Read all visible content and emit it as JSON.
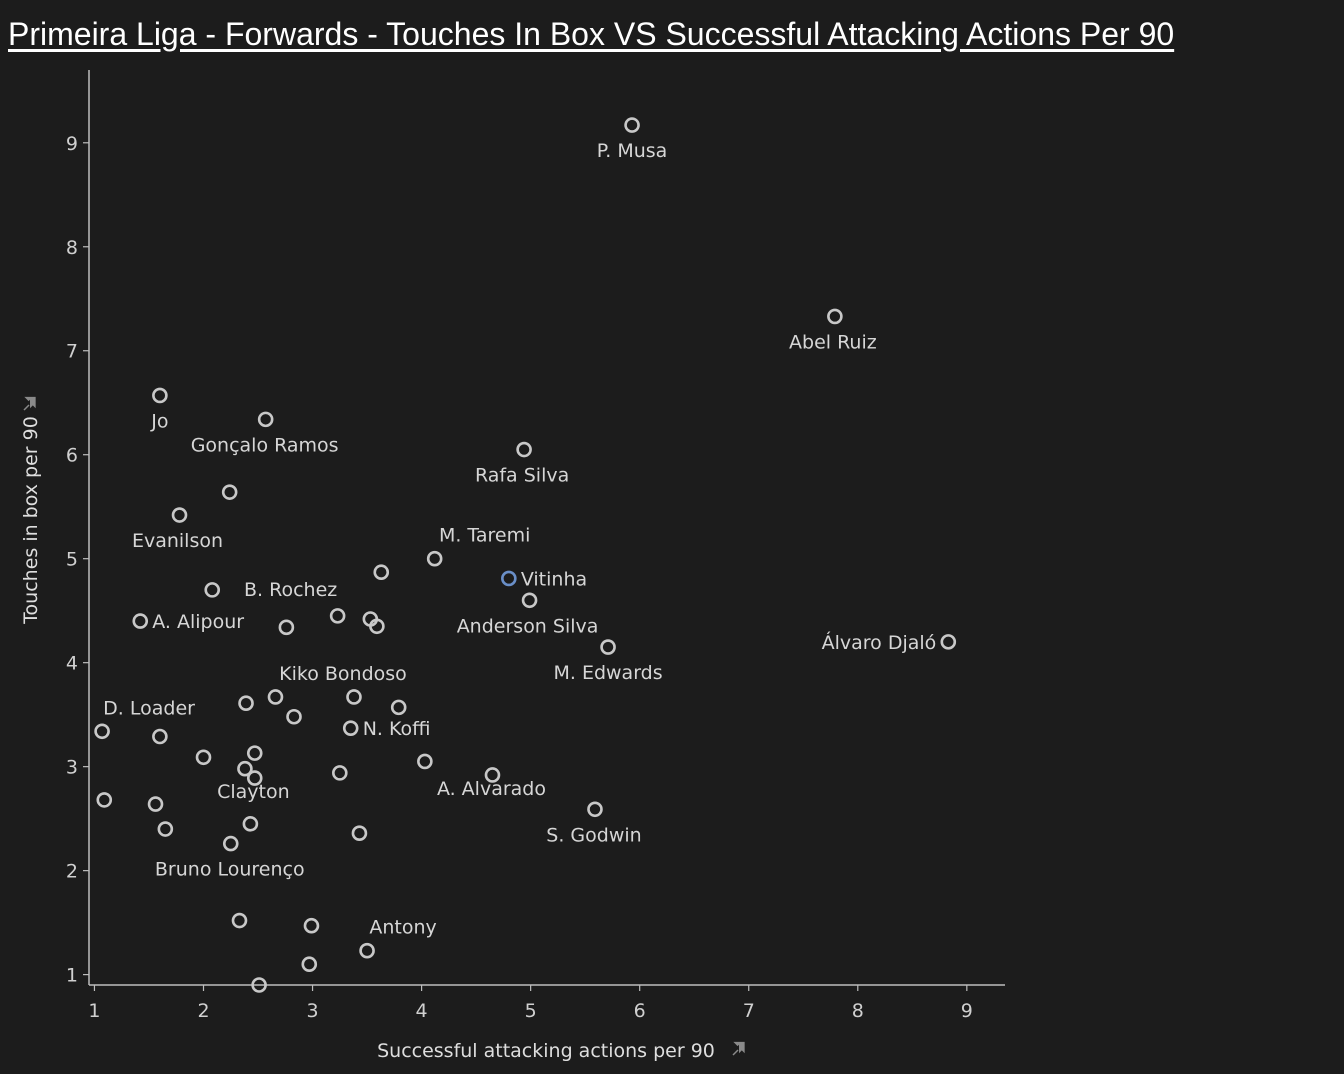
{
  "chart_data": {
    "type": "scatter",
    "title": "Primeira Liga - Forwards - Touches In Box VS Successful Attacking Actions Per 90",
    "xlabel": "Successful attacking actions per 90",
    "ylabel": "Touches in box per 90",
    "x_ticks": [
      "1",
      "2",
      "3",
      "4",
      "5",
      "6",
      "7",
      "8",
      "9"
    ],
    "y_ticks": [
      "1",
      "2",
      "3",
      "4",
      "5",
      "6",
      "7",
      "8",
      "9"
    ],
    "xlim": [
      0.95,
      9.35
    ],
    "ylim": [
      0.9,
      9.7
    ],
    "grid": false,
    "marker_color": "#c8c8c8",
    "highlight_color": "#6a8fc8",
    "pin_icon": "pin-icon",
    "points": [
      {
        "label": "P. Musa",
        "x": 5.93,
        "y": 9.17
      },
      {
        "label": "Abel Ruiz",
        "x": 7.79,
        "y": 7.33
      },
      {
        "label": "Jo",
        "x": 1.6,
        "y": 6.57
      },
      {
        "label": "Gonçalo Ramos",
        "x": 2.57,
        "y": 6.34
      },
      {
        "label": "Rafa Silva",
        "x": 4.94,
        "y": 6.05
      },
      {
        "label": "",
        "x": 2.24,
        "y": 5.64
      },
      {
        "label": "Evanilson",
        "x": 1.78,
        "y": 5.42
      },
      {
        "label": "M. Taremi",
        "x": 4.12,
        "y": 5.0
      },
      {
        "label": "",
        "x": 3.63,
        "y": 4.87
      },
      {
        "label": "Vitinha",
        "x": 4.8,
        "y": 4.81,
        "highlight": true
      },
      {
        "label": "",
        "x": 2.08,
        "y": 4.7
      },
      {
        "label": "B. Rochez",
        "x": 3.23,
        "y": 4.45
      },
      {
        "label": "Anderson Silva",
        "x": 4.99,
        "y": 4.6
      },
      {
        "label": "A. Alipour",
        "x": 1.42,
        "y": 4.4
      },
      {
        "label": "",
        "x": 2.76,
        "y": 4.34
      },
      {
        "label": "",
        "x": 3.53,
        "y": 4.42
      },
      {
        "label": "",
        "x": 3.59,
        "y": 4.35
      },
      {
        "label": "Álvaro Djaló",
        "x": 8.83,
        "y": 4.2
      },
      {
        "label": "M. Edwards",
        "x": 5.71,
        "y": 4.15
      },
      {
        "label": "Kiko Bondoso",
        "x": 3.38,
        "y": 3.67
      },
      {
        "label": "",
        "x": 2.66,
        "y": 3.67
      },
      {
        "label": "",
        "x": 2.39,
        "y": 3.61
      },
      {
        "label": "",
        "x": 3.79,
        "y": 3.57
      },
      {
        "label": "",
        "x": 2.83,
        "y": 3.48
      },
      {
        "label": "N. Koffi",
        "x": 3.35,
        "y": 3.37
      },
      {
        "label": "D. Loader",
        "x": 1.07,
        "y": 3.34
      },
      {
        "label": "",
        "x": 1.6,
        "y": 3.29
      },
      {
        "label": "",
        "x": 2.47,
        "y": 3.13
      },
      {
        "label": "",
        "x": 2.0,
        "y": 3.09
      },
      {
        "label": "",
        "x": 4.03,
        "y": 3.05
      },
      {
        "label": "",
        "x": 2.38,
        "y": 2.98
      },
      {
        "label": "",
        "x": 3.25,
        "y": 2.94
      },
      {
        "label": "A. Alvarado",
        "x": 4.65,
        "y": 2.92
      },
      {
        "label": "",
        "x": 2.47,
        "y": 2.89
      },
      {
        "label": "",
        "x": 1.09,
        "y": 2.68
      },
      {
        "label": "",
        "x": 1.56,
        "y": 2.64
      },
      {
        "label": "S. Godwin",
        "x": 5.59,
        "y": 2.59
      },
      {
        "label": "Clayton",
        "x": 2.43,
        "y": 2.45
      },
      {
        "label": "",
        "x": 1.65,
        "y": 2.4
      },
      {
        "label": "",
        "x": 3.43,
        "y": 2.36
      },
      {
        "label": "Bruno Lourenço",
        "x": 2.25,
        "y": 2.26
      },
      {
        "label": "",
        "x": 2.33,
        "y": 1.52
      },
      {
        "label": "",
        "x": 2.99,
        "y": 1.47
      },
      {
        "label": "Antony",
        "x": 3.5,
        "y": 1.23
      },
      {
        "label": "",
        "x": 2.97,
        "y": 1.1
      },
      {
        "label": "",
        "x": 2.51,
        "y": 0.9
      }
    ]
  }
}
